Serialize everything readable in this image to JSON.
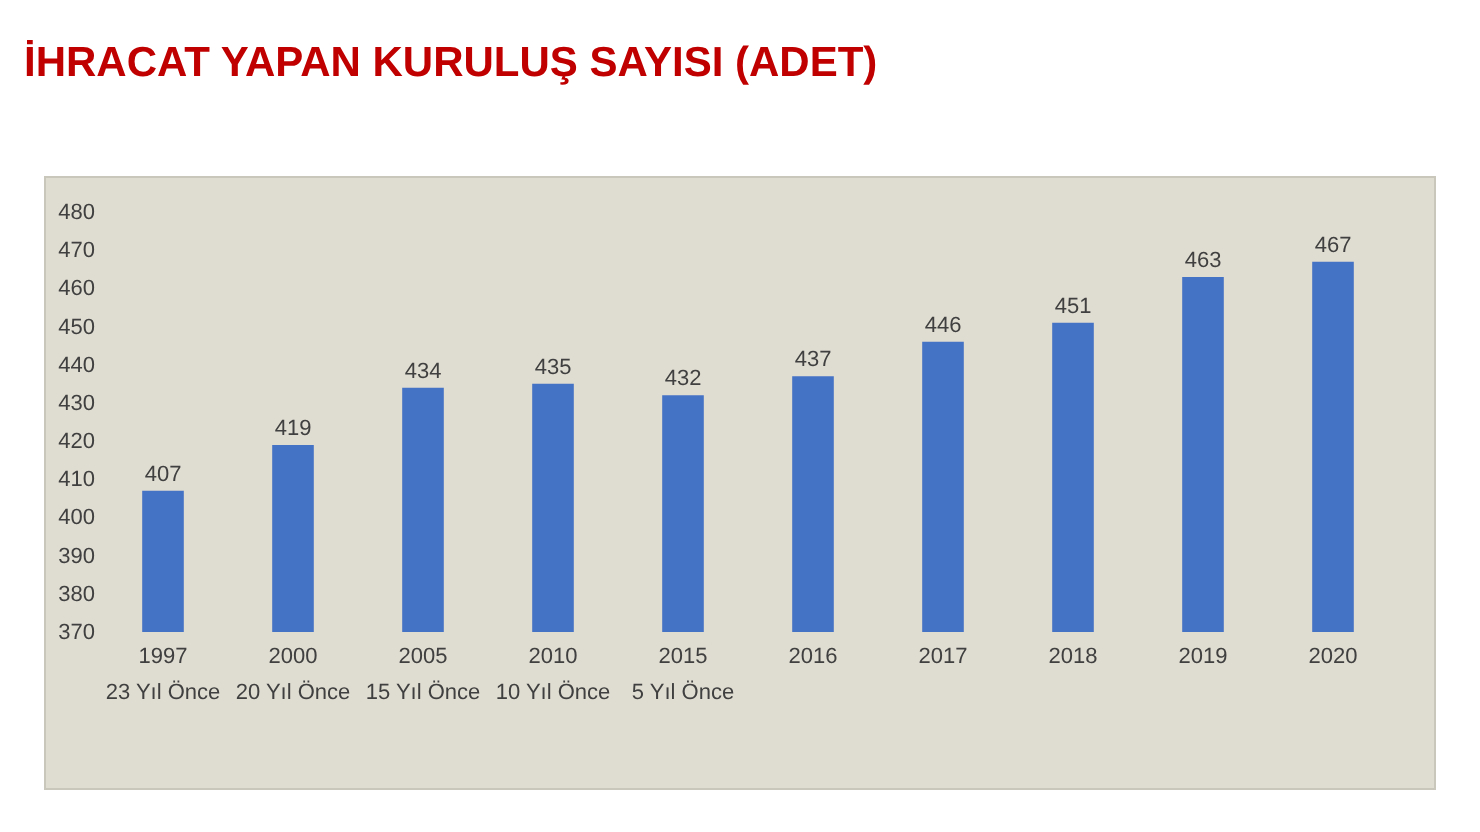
{
  "chart_data": {
    "type": "bar",
    "title": "İHRACAT YAPAN KURULUŞ SAYISI (ADET)",
    "categories": [
      "1997\n23 Yıl Önce",
      "2000\n20 Yıl Önce",
      "2005\n15 Yıl Önce",
      "2010\n10 Yıl Önce",
      "2015\n5 Yıl Önce",
      "2016",
      "2017",
      "2018",
      "2019",
      "2020"
    ],
    "values": [
      407,
      419,
      434,
      435,
      432,
      437,
      446,
      451,
      463,
      467
    ],
    "color": "#4472c4",
    "ylim": [
      370,
      480
    ],
    "yticks": [
      370,
      380,
      390,
      400,
      410,
      420,
      430,
      440,
      450,
      460,
      470,
      480
    ],
    "data_labels": true
  }
}
